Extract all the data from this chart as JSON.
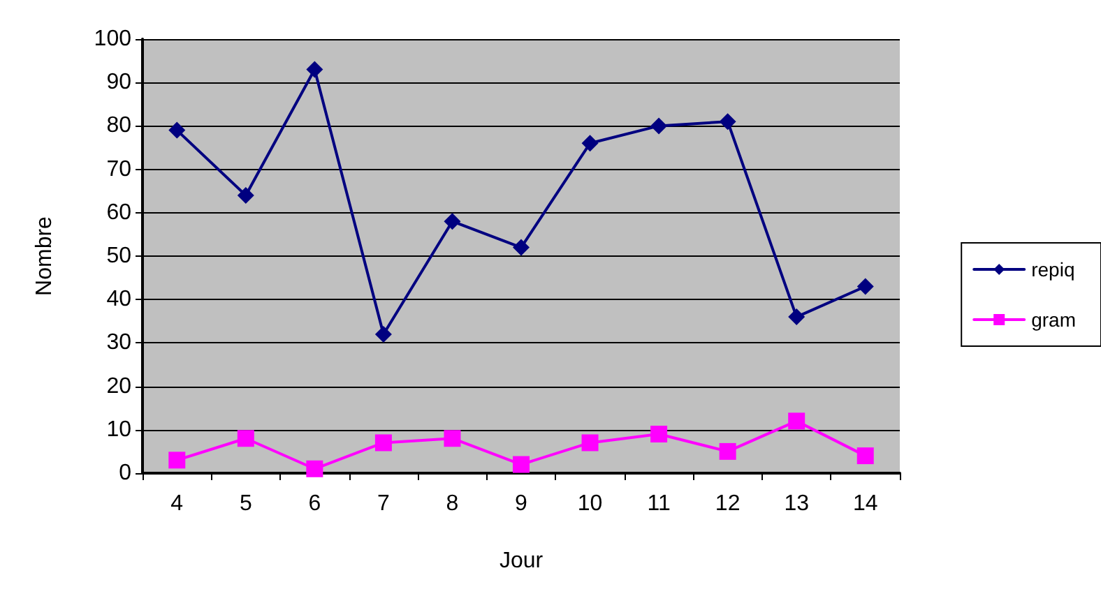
{
  "chart_data": {
    "type": "line",
    "xlabel": "Jour",
    "ylabel": "Nombre",
    "categories": [
      "4",
      "5",
      "6",
      "7",
      "8",
      "9",
      "10",
      "11",
      "12",
      "13",
      "14"
    ],
    "series": [
      {
        "name": "repiq",
        "color": "#000080",
        "marker": "diamond",
        "values": [
          79,
          64,
          93,
          32,
          58,
          52,
          76,
          80,
          81,
          36,
          43
        ]
      },
      {
        "name": "gram",
        "color": "#ff00ff",
        "marker": "square",
        "values": [
          3,
          8,
          1,
          7,
          8,
          2,
          7,
          9,
          5,
          12,
          4
        ]
      }
    ],
    "ylim": [
      0,
      100
    ],
    "yticks": [
      0,
      10,
      20,
      30,
      40,
      50,
      60,
      70,
      80,
      90,
      100
    ],
    "grid": "y",
    "legend": "right",
    "line_style": "solid"
  }
}
